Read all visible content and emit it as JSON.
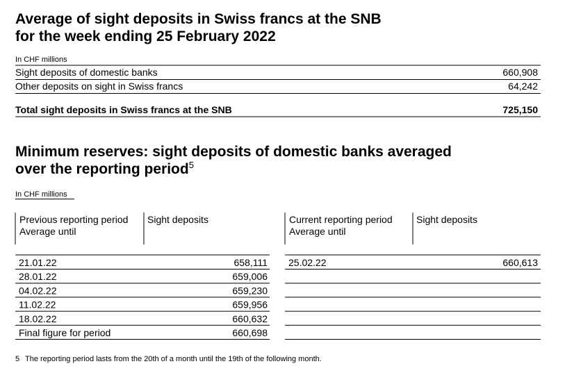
{
  "section1": {
    "title": [
      "Average of sight deposits in Swiss francs at the SNB",
      "for the week ending 25 February 2022"
    ],
    "unit": "In CHF millions",
    "rows": [
      [
        "Sight deposits of domestic banks",
        "660,908"
      ],
      [
        "Other deposits on sight in Swiss francs",
        "64,242"
      ]
    ],
    "total": [
      "Total sight deposits in Swiss francs at the SNB",
      "725,150"
    ]
  },
  "section2": {
    "title": [
      "Minimum reserves: sight deposits of domestic banks averaged",
      "over the reporting period"
    ],
    "footnote_ref": "5",
    "unit": "In CHF millions",
    "previous": {
      "header": [
        [
          "Previous reporting period",
          "Average until"
        ],
        [
          "Sight deposits"
        ]
      ],
      "rows": [
        [
          "21.01.22",
          "658,111"
        ],
        [
          "28.01.22",
          "659,006"
        ],
        [
          "04.02.22",
          "659,230"
        ],
        [
          "11.02.22",
          "659,956"
        ],
        [
          "18.02.22",
          "660,632"
        ],
        [
          "Final figure for period",
          "660,698"
        ]
      ]
    },
    "current": {
      "header": [
        [
          "Current reporting period",
          "Average until"
        ],
        [
          "Sight deposits"
        ]
      ],
      "rows": [
        [
          "25.02.22",
          "660,613"
        ]
      ]
    }
  },
  "footnote": {
    "number": "5",
    "text": "The reporting period lasts from the 20th of a month until the 19th of the following month."
  }
}
